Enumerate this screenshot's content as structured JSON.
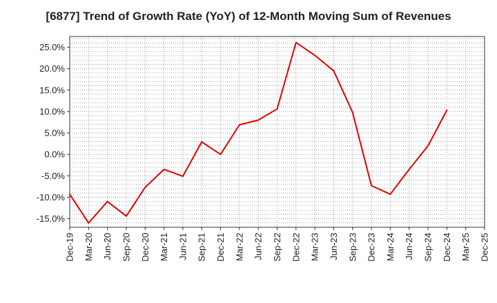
{
  "chart_data": {
    "type": "line",
    "title": "[6877]  Trend of Growth Rate (YoY) of 12-Month Moving Sum of Revenues",
    "xlabel": "",
    "ylabel": "",
    "x_ticks": [
      "Dec-19",
      "Mar-20",
      "Jun-20",
      "Sep-20",
      "Dec-20",
      "Mar-21",
      "Jun-21",
      "Sep-21",
      "Dec-21",
      "Mar-22",
      "Jun-22",
      "Sep-22",
      "Dec-22",
      "Mar-23",
      "Jun-23",
      "Sep-23",
      "Dec-23",
      "Mar-24",
      "Jun-24",
      "Sep-24",
      "Dec-24",
      "Mar-25",
      "Dec-25"
    ],
    "y_ticks": [
      "25.0%",
      "20.0%",
      "15.0%",
      "10.0%",
      "5.0%",
      "0.0%",
      "-5.0%",
      "-10.0%",
      "-15.0%"
    ],
    "y_tick_values": [
      25,
      20,
      15,
      10,
      5,
      0,
      -5,
      -10,
      -15
    ],
    "ylim": [
      -17,
      27.5
    ],
    "grid": true,
    "series": [
      {
        "color": "#e00000",
        "x": [
          "Dec-19",
          "Mar-20",
          "Jun-20",
          "Sep-20",
          "Dec-20",
          "Mar-21",
          "Jun-21",
          "Sep-21",
          "Dec-21",
          "Mar-22",
          "Jun-22",
          "Sep-22",
          "Dec-22",
          "Mar-23",
          "Jun-23",
          "Sep-23",
          "Dec-23",
          "Mar-24",
          "Jun-24",
          "Sep-24",
          "Dec-24"
        ],
        "values": [
          -9.3,
          -16.0,
          -11.0,
          -14.4,
          -7.7,
          -3.5,
          -5.1,
          2.9,
          0.0,
          6.9,
          8.0,
          10.6,
          26.1,
          23.1,
          19.5,
          9.8,
          -7.3,
          -9.3,
          -3.5,
          2.0,
          10.3
        ]
      }
    ]
  }
}
